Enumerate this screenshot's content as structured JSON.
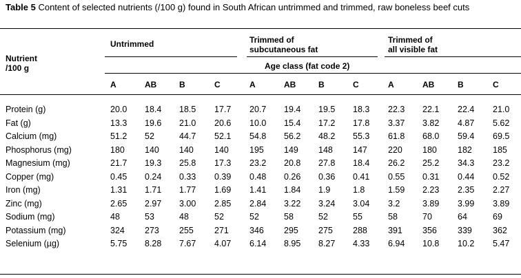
{
  "table": {
    "caption_label": "Table 5",
    "caption_text": " Content of selected nutrients (/100 g) found in South African untrimmed and trimmed, raw boneless beef cuts",
    "nutrient_header_line1": "Nutrient",
    "nutrient_header_line2": "/100 g",
    "groups": [
      {
        "line1": "Untrimmed",
        "line2": ""
      },
      {
        "line1": "Trimmed of",
        "line2": "subcutaneous fat"
      },
      {
        "line1": "Trimmed of",
        "line2": "all visible fat"
      }
    ],
    "age_class_label": "Age class (fat code 2)",
    "columns": [
      "A",
      "AB",
      "B",
      "C",
      "A",
      "AB",
      "B",
      "C",
      "A",
      "AB",
      "B",
      "C"
    ],
    "rows": [
      {
        "nutrient": "Protein (g)",
        "values": [
          "20.0",
          "18.4",
          "18.5",
          "17.7",
          "20.7",
          "19.4",
          "19.5",
          "18.3",
          "22.3",
          "22.1",
          "22.4",
          "21.0"
        ]
      },
      {
        "nutrient": "Fat (g)",
        "values": [
          "13.3",
          "19.6",
          "21.0",
          "20.6",
          "10.0",
          "15.4",
          "17.2",
          "17.8",
          "3.37",
          "3.82",
          "4.87",
          "5.62"
        ]
      },
      {
        "nutrient": "Calcium (mg)",
        "values": [
          "51.2",
          "52",
          "44.7",
          "52.1",
          "54.8",
          "56.2",
          "48.2",
          "55.3",
          "61.8",
          "68.0",
          "59.4",
          "69.5"
        ]
      },
      {
        "nutrient": "Phosphorus (mg)",
        "values": [
          "180",
          "140",
          "140",
          "140",
          "195",
          "149",
          "148",
          "147",
          "220",
          "180",
          "182",
          "185"
        ]
      },
      {
        "nutrient": "Magnesium (mg)",
        "values": [
          "21.7",
          "19.3",
          "25.8",
          "17.3",
          "23.2",
          "20.8",
          "27.8",
          "18.4",
          "26.2",
          "25.2",
          "34.3",
          "23.2"
        ]
      },
      {
        "nutrient": "Copper (mg)",
        "values": [
          "0.45",
          "0.24",
          "0.33",
          "0.39",
          "0.48",
          "0.26",
          "0.36",
          "0.41",
          "0.55",
          "0.31",
          "0.44",
          "0.52"
        ]
      },
      {
        "nutrient": "Iron (mg)",
        "values": [
          "1.31",
          "1.71",
          "1.77",
          "1.69",
          "1.41",
          "1.84",
          "1.9",
          "1.8",
          "1.59",
          "2.23",
          "2.35",
          "2.27"
        ]
      },
      {
        "nutrient": "Zinc (mg)",
        "values": [
          "2.65",
          "2.97",
          "3.00",
          "2.85",
          "2.84",
          "3.22",
          "3.24",
          "3.04",
          "3.2",
          "3.89",
          "3.99",
          "3.89"
        ]
      },
      {
        "nutrient": "Sodium (mg)",
        "values": [
          "48",
          "53",
          "48",
          "52",
          "52",
          "58",
          "52",
          "55",
          "58",
          "70",
          "64",
          "69"
        ]
      },
      {
        "nutrient": "Potassium (mg)",
        "values": [
          "324",
          "273",
          "255",
          "271",
          "346",
          "295",
          "275",
          "288",
          "391",
          "356",
          "339",
          "362"
        ]
      },
      {
        "nutrient": "Selenium (µg)",
        "values": [
          "5.75",
          "8.28",
          "7.67",
          "4.07",
          "6.14",
          "8.95",
          "8.27",
          "4.33",
          "6.94",
          "10.8",
          "10.2",
          "5.47"
        ]
      }
    ]
  }
}
